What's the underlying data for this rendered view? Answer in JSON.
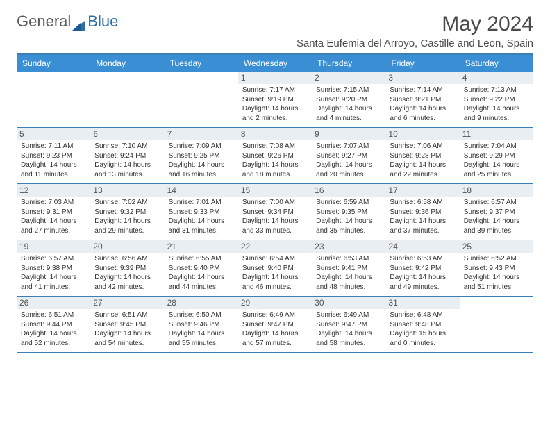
{
  "logo": {
    "text1": "General",
    "text2": "Blue",
    "color1": "#6a6a6a",
    "color2": "#2d6ea8"
  },
  "title": "May 2024",
  "location": "Santa Eufemia del Arroyo, Castille and Leon, Spain",
  "day_names": [
    "Sunday",
    "Monday",
    "Tuesday",
    "Wednesday",
    "Thursday",
    "Friday",
    "Saturday"
  ],
  "colors": {
    "header_bg": "#3a8fd4",
    "header_text": "#ffffff",
    "border": "#3a7fb8",
    "daynum_bg": "#e8eef2",
    "text": "#333333"
  },
  "weeks": [
    [
      {
        "n": "",
        "sr": "",
        "ss": "",
        "dl": ""
      },
      {
        "n": "",
        "sr": "",
        "ss": "",
        "dl": ""
      },
      {
        "n": "",
        "sr": "",
        "ss": "",
        "dl": ""
      },
      {
        "n": "1",
        "sr": "7:17 AM",
        "ss": "9:19 PM",
        "dl": "14 hours and 2 minutes."
      },
      {
        "n": "2",
        "sr": "7:15 AM",
        "ss": "9:20 PM",
        "dl": "14 hours and 4 minutes."
      },
      {
        "n": "3",
        "sr": "7:14 AM",
        "ss": "9:21 PM",
        "dl": "14 hours and 6 minutes."
      },
      {
        "n": "4",
        "sr": "7:13 AM",
        "ss": "9:22 PM",
        "dl": "14 hours and 9 minutes."
      }
    ],
    [
      {
        "n": "5",
        "sr": "7:11 AM",
        "ss": "9:23 PM",
        "dl": "14 hours and 11 minutes."
      },
      {
        "n": "6",
        "sr": "7:10 AM",
        "ss": "9:24 PM",
        "dl": "14 hours and 13 minutes."
      },
      {
        "n": "7",
        "sr": "7:09 AM",
        "ss": "9:25 PM",
        "dl": "14 hours and 16 minutes."
      },
      {
        "n": "8",
        "sr": "7:08 AM",
        "ss": "9:26 PM",
        "dl": "14 hours and 18 minutes."
      },
      {
        "n": "9",
        "sr": "7:07 AM",
        "ss": "9:27 PM",
        "dl": "14 hours and 20 minutes."
      },
      {
        "n": "10",
        "sr": "7:06 AM",
        "ss": "9:28 PM",
        "dl": "14 hours and 22 minutes."
      },
      {
        "n": "11",
        "sr": "7:04 AM",
        "ss": "9:29 PM",
        "dl": "14 hours and 25 minutes."
      }
    ],
    [
      {
        "n": "12",
        "sr": "7:03 AM",
        "ss": "9:31 PM",
        "dl": "14 hours and 27 minutes."
      },
      {
        "n": "13",
        "sr": "7:02 AM",
        "ss": "9:32 PM",
        "dl": "14 hours and 29 minutes."
      },
      {
        "n": "14",
        "sr": "7:01 AM",
        "ss": "9:33 PM",
        "dl": "14 hours and 31 minutes."
      },
      {
        "n": "15",
        "sr": "7:00 AM",
        "ss": "9:34 PM",
        "dl": "14 hours and 33 minutes."
      },
      {
        "n": "16",
        "sr": "6:59 AM",
        "ss": "9:35 PM",
        "dl": "14 hours and 35 minutes."
      },
      {
        "n": "17",
        "sr": "6:58 AM",
        "ss": "9:36 PM",
        "dl": "14 hours and 37 minutes."
      },
      {
        "n": "18",
        "sr": "6:57 AM",
        "ss": "9:37 PM",
        "dl": "14 hours and 39 minutes."
      }
    ],
    [
      {
        "n": "19",
        "sr": "6:57 AM",
        "ss": "9:38 PM",
        "dl": "14 hours and 41 minutes."
      },
      {
        "n": "20",
        "sr": "6:56 AM",
        "ss": "9:39 PM",
        "dl": "14 hours and 42 minutes."
      },
      {
        "n": "21",
        "sr": "6:55 AM",
        "ss": "9:40 PM",
        "dl": "14 hours and 44 minutes."
      },
      {
        "n": "22",
        "sr": "6:54 AM",
        "ss": "9:40 PM",
        "dl": "14 hours and 46 minutes."
      },
      {
        "n": "23",
        "sr": "6:53 AM",
        "ss": "9:41 PM",
        "dl": "14 hours and 48 minutes."
      },
      {
        "n": "24",
        "sr": "6:53 AM",
        "ss": "9:42 PM",
        "dl": "14 hours and 49 minutes."
      },
      {
        "n": "25",
        "sr": "6:52 AM",
        "ss": "9:43 PM",
        "dl": "14 hours and 51 minutes."
      }
    ],
    [
      {
        "n": "26",
        "sr": "6:51 AM",
        "ss": "9:44 PM",
        "dl": "14 hours and 52 minutes."
      },
      {
        "n": "27",
        "sr": "6:51 AM",
        "ss": "9:45 PM",
        "dl": "14 hours and 54 minutes."
      },
      {
        "n": "28",
        "sr": "6:50 AM",
        "ss": "9:46 PM",
        "dl": "14 hours and 55 minutes."
      },
      {
        "n": "29",
        "sr": "6:49 AM",
        "ss": "9:47 PM",
        "dl": "14 hours and 57 minutes."
      },
      {
        "n": "30",
        "sr": "6:49 AM",
        "ss": "9:47 PM",
        "dl": "14 hours and 58 minutes."
      },
      {
        "n": "31",
        "sr": "6:48 AM",
        "ss": "9:48 PM",
        "dl": "15 hours and 0 minutes."
      },
      {
        "n": "",
        "sr": "",
        "ss": "",
        "dl": ""
      }
    ]
  ],
  "labels": {
    "sunrise": "Sunrise: ",
    "sunset": "Sunset: ",
    "daylight": "Daylight: "
  }
}
